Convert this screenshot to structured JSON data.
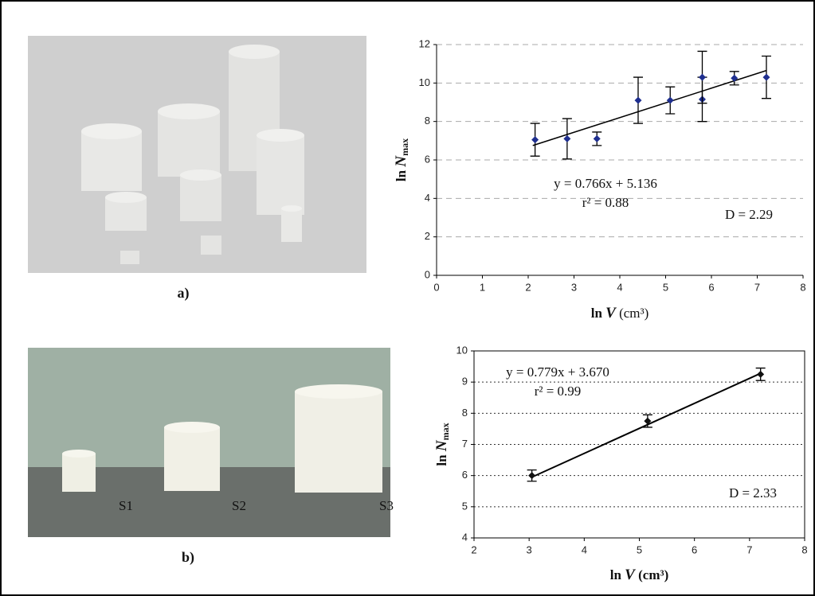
{
  "panel_labels": [
    "a)",
    "b)"
  ],
  "sample_labels": [
    "S1",
    "S2",
    "S3"
  ],
  "chart_data": [
    {
      "type": "scatter",
      "x": [
        2.15,
        2.85,
        3.5,
        4.4,
        5.1,
        5.8,
        5.8,
        6.5,
        7.2
      ],
      "values": [
        7.05,
        7.1,
        7.1,
        9.1,
        9.1,
        9.15,
        10.3,
        10.25,
        10.3
      ],
      "errors": [
        0.85,
        1.05,
        0.35,
        1.2,
        0.7,
        1.15,
        1.35,
        0.35,
        1.1
      ],
      "color": "#1f2f8f",
      "trendline": {
        "x": [
          2.1,
          7.2
        ],
        "y": [
          6.75,
          10.65
        ]
      },
      "xlim": [
        0,
        8
      ],
      "xticks": [
        0,
        1,
        2,
        3,
        4,
        5,
        6,
        7,
        8
      ],
      "ylim": [
        0,
        12
      ],
      "yticks": [
        0,
        2,
        4,
        6,
        8,
        10,
        12
      ],
      "grid": true,
      "xlabel": [
        "ln ",
        "V",
        " (cm³)"
      ],
      "ylabel": [
        "ln ",
        "N",
        "max"
      ],
      "annotations": [
        "y = 0.766x + 5.136",
        "r² = 0.88",
        "D = 2.29"
      ]
    },
    {
      "type": "scatter",
      "x": [
        3.05,
        5.15,
        7.2
      ],
      "values": [
        6.0,
        7.75,
        9.25
      ],
      "errors": [
        0.18,
        0.2,
        0.2
      ],
      "color": "#111111",
      "trendline": {
        "x": [
          3.05,
          7.2
        ],
        "y": [
          5.95,
          9.28
        ]
      },
      "xlim": [
        2,
        8
      ],
      "xticks": [
        2,
        3,
        4,
        5,
        6,
        7,
        8
      ],
      "ylim": [
        4,
        10
      ],
      "yticks": [
        4,
        5,
        6,
        7,
        8,
        9,
        10
      ],
      "grid": true,
      "xlabel": [
        "ln ",
        "V",
        " (cm³)"
      ],
      "ylabel": [
        "ln ",
        "N",
        "max"
      ],
      "annotations": [
        "y = 0.779x + 3.670",
        "r² = 0.99",
        "D = 2.33"
      ]
    }
  ]
}
